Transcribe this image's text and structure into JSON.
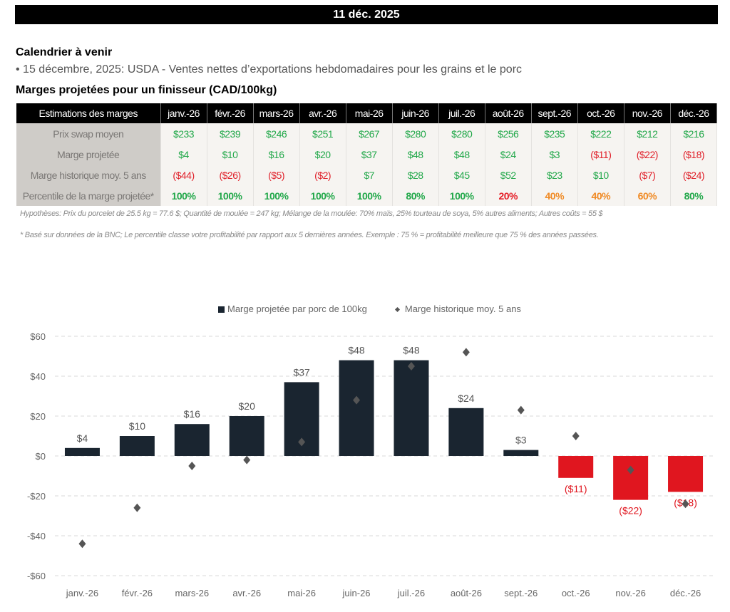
{
  "header": {
    "date": "11 déc. 2025"
  },
  "calendar": {
    "title": "Calendrier à venir",
    "items": [
      "• 15 décembre, 2025: USDA - Ventes nettes d’exportations hebdomadaires pour les grains et le porc"
    ]
  },
  "section_title": "Marges projetées pour un finisseur (CAD/100kg)",
  "table": {
    "header_label": "Estimations des marges",
    "months": [
      "janv.-26",
      "févr.-26",
      "mars-26",
      "avr.-26",
      "mai-26",
      "juin-26",
      "juil.-26",
      "août-26",
      "sept.-26",
      "oct.-26",
      "nov.-26",
      "déc.-26"
    ],
    "rows": [
      {
        "label": "Prix swap moyen",
        "values": [
          "$233",
          "$239",
          "$246",
          "$251",
          "$267",
          "$280",
          "$280",
          "$256",
          "$235",
          "$222",
          "$212",
          "$216"
        ],
        "classes": [
          "pos",
          "pos",
          "pos",
          "pos",
          "pos",
          "pos",
          "pos",
          "pos",
          "pos",
          "pos",
          "pos",
          "pos"
        ]
      },
      {
        "label": "Marge projetée",
        "values": [
          "$4",
          "$10",
          "$16",
          "$20",
          "$37",
          "$48",
          "$48",
          "$24",
          "$3",
          "($11)",
          "($22)",
          "($18)"
        ],
        "classes": [
          "pos",
          "pos",
          "pos",
          "pos",
          "pos",
          "pos",
          "pos",
          "pos",
          "pos",
          "neg",
          "neg",
          "neg"
        ]
      },
      {
        "label": "Marge historique moy. 5 ans",
        "values": [
          "($44)",
          "($26)",
          "($5)",
          "($2)",
          "$7",
          "$28",
          "$45",
          "$52",
          "$23",
          "$10",
          "($7)",
          "($24)"
        ],
        "classes": [
          "neg",
          "neg",
          "neg",
          "neg",
          "pos",
          "pos",
          "pos",
          "pos",
          "pos",
          "pos",
          "neg",
          "neg"
        ]
      },
      {
        "label": "Percentile de la marge projetée*",
        "values": [
          "100%",
          "100%",
          "100%",
          "100%",
          "100%",
          "80%",
          "100%",
          "20%",
          "40%",
          "40%",
          "60%",
          "80%"
        ],
        "classes": [
          "pct-green",
          "pct-green",
          "pct-green",
          "pct-green",
          "pct-green",
          "pct-green",
          "pct-green",
          "pct-red",
          "pct-orange",
          "pct-orange",
          "pct-orange",
          "pct-green"
        ]
      }
    ]
  },
  "notes": {
    "hypotheses": "Hypothèses: Prix du porcelet de 25.5 kg = 77.6 $; Quantité de moulée = 247 kg; Mélange de la moulée: 70% maïs, 25% tourteau de soya, 5% autres aliments; Autres coûts = 55 $",
    "footnote": "* Basé sur données de la BNC; Le percentile classe votre profitabilité par rapport aux 5 dernières années. Exemple : 75 % = profitabilité meilleure que 75 % des années passées."
  },
  "colors": {
    "bar_positive": "#1a2530",
    "bar_negative": "#e0161f",
    "marker": "#555555",
    "positive_text": "#22a84a",
    "negative_text": "#e0202a",
    "orange_text": "#f08a24"
  },
  "chart_data": {
    "type": "bar",
    "title": "",
    "xlabel": "",
    "ylabel": "",
    "ylim": [
      -60,
      60
    ],
    "yticks": [
      60,
      40,
      20,
      0,
      -20,
      -40,
      -60
    ],
    "ytick_labels": [
      "$60",
      "$40",
      "$20",
      "$0",
      "-$20",
      "-$40",
      "-$60"
    ],
    "grid": true,
    "legend_position": "top-center",
    "categories": [
      "janv.-26",
      "févr.-26",
      "mars-26",
      "avr.-26",
      "mai-26",
      "juin-26",
      "juil.-26",
      "août-26",
      "sept.-26",
      "oct.-26",
      "nov.-26",
      "déc.-26"
    ],
    "series": [
      {
        "name": "Marge projetée par porc de 100kg",
        "kind": "bar",
        "values": [
          4,
          10,
          16,
          20,
          37,
          48,
          48,
          24,
          3,
          -11,
          -22,
          -18
        ],
        "labels": [
          "$4",
          "$10",
          "$16",
          "$20",
          "$37",
          "$48",
          "$48",
          "$24",
          "$3",
          "($11)",
          "($22)",
          "($18)"
        ]
      },
      {
        "name": "Marge historique moy. 5 ans",
        "kind": "marker",
        "values": [
          -44,
          -26,
          -5,
          -2,
          7,
          28,
          45,
          52,
          23,
          10,
          -7,
          -24
        ]
      }
    ]
  }
}
